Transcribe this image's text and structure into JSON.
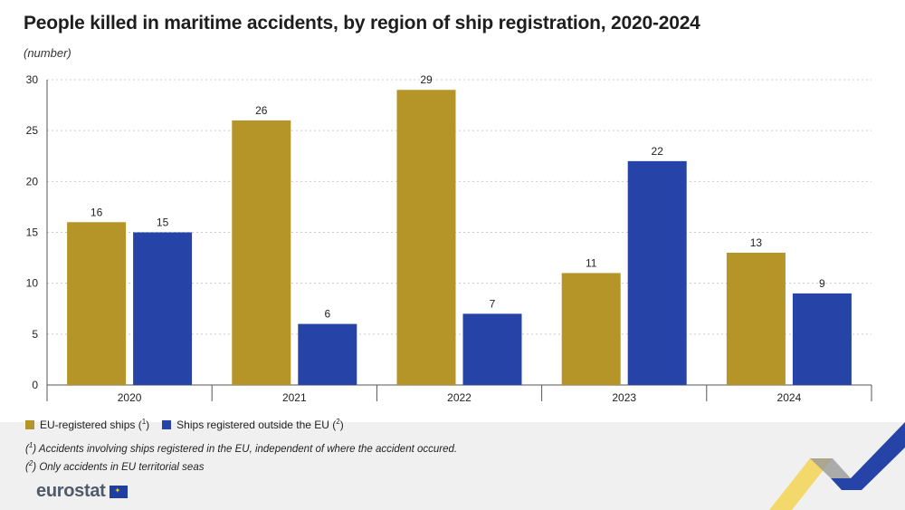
{
  "title": "People killed in maritime accidents, by region of ship registration, 2020-2024",
  "subtitle": "(number)",
  "legend": {
    "eu_label": "EU-registered ships (",
    "eu_sup": "1",
    "eu_close": ")",
    "non_eu_label": "Ships registered outside the EU (",
    "non_eu_sup": "2",
    "non_eu_close": ")"
  },
  "notes": {
    "note1_open": "(",
    "note1_sup": "1",
    "note1_text": ") Accidents involving ships registered in the EU, independent of where the accident occured.",
    "note2_open": "(",
    "note2_sup": "2",
    "note2_text": ") Only accidents in EU territorial seas"
  },
  "logo": {
    "text": "eurostat"
  },
  "colors": {
    "eu": "#b59428",
    "non_eu": "#2644a8",
    "grid": "#cccccc",
    "axis": "#555555"
  },
  "chart_data": {
    "type": "bar",
    "title": "People killed in maritime accidents, by region of ship registration, 2020-2024",
    "ylabel": "(number)",
    "ylim": [
      0,
      30
    ],
    "yticks": [
      0,
      5,
      10,
      15,
      20,
      25,
      30
    ],
    "categories": [
      "2020",
      "2021",
      "2022",
      "2023",
      "2024"
    ],
    "series": [
      {
        "name": "EU-registered ships (1)",
        "color": "#b59428",
        "values": [
          16,
          26,
          29,
          11,
          13
        ]
      },
      {
        "name": "Ships registered outside the EU (2)",
        "color": "#2644a8",
        "values": [
          15,
          6,
          7,
          22,
          9
        ]
      }
    ]
  }
}
